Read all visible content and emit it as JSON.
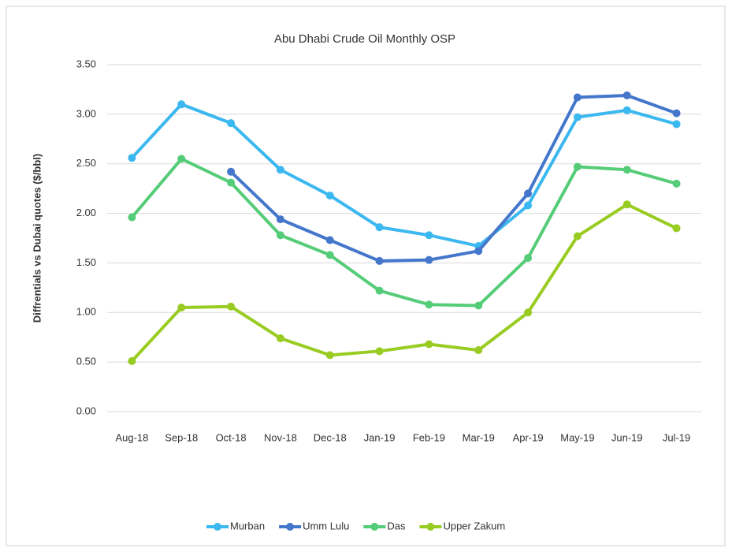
{
  "chart_data": {
    "type": "line",
    "title": "Abu Dhabi Crude Oil Monthly OSP",
    "y_label": "Diffrentials vs Dubai quotes ($/bbl)",
    "categories": [
      "Aug-18",
      "Sep-18",
      "Oct-18",
      "Nov-18",
      "Dec-18",
      "Jan-19",
      "Feb-19",
      "Mar-19",
      "Apr-19",
      "May-19",
      "Jun-19",
      "Jul-19"
    ],
    "series": [
      {
        "name": "Murban",
        "color": "#3cb8f0",
        "values": [
          2.56,
          3.1,
          2.91,
          2.44,
          2.18,
          1.86,
          1.78,
          1.67,
          2.08,
          2.97,
          3.04,
          2.9
        ]
      },
      {
        "name": "Umm Lulu",
        "color": "#4477cc",
        "values": [
          null,
          null,
          2.42,
          1.94,
          1.73,
          1.52,
          1.53,
          1.62,
          2.2,
          3.17,
          3.19,
          3.01
        ]
      },
      {
        "name": "Das",
        "color": "#55cc77",
        "values": [
          1.96,
          2.55,
          2.31,
          1.78,
          1.58,
          1.22,
          1.08,
          1.07,
          1.55,
          2.47,
          2.44,
          2.3
        ]
      },
      {
        "name": "Upper Zakum",
        "color": "#99cc22",
        "values": [
          0.51,
          1.05,
          1.06,
          0.74,
          0.57,
          0.61,
          0.68,
          0.62,
          1.0,
          1.77,
          2.09,
          1.85
        ]
      }
    ],
    "ylim": [
      0,
      3.5
    ],
    "yticks": [
      {
        "value": 0,
        "label": "0.00"
      },
      {
        "value": 0.5,
        "label": "0.50"
      },
      {
        "value": 1,
        "label": "1.00"
      },
      {
        "value": 1.5,
        "label": "1.50"
      },
      {
        "value": 2,
        "label": "2.00"
      },
      {
        "value": 2.5,
        "label": "2.50"
      },
      {
        "value": 3,
        "label": "3.00"
      },
      {
        "value": 3.5,
        "label": "3.50"
      }
    ],
    "grid": true,
    "legend": "bottom"
  }
}
